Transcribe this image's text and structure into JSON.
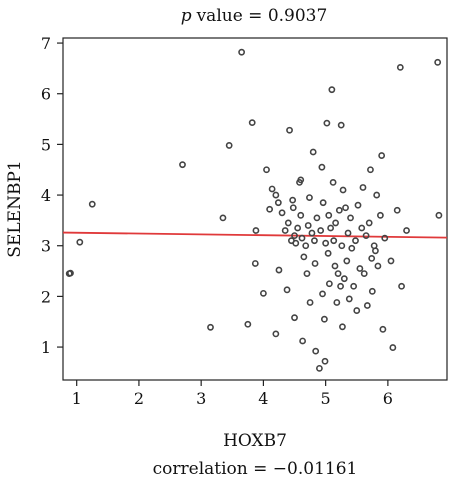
{
  "chart_data": {
    "type": "scatter",
    "title_label": "p",
    "title_value": "value = 0.9037",
    "xlabel": "HOXB7",
    "ylabel": "SELENBP1",
    "caption": "correlation = −0.01161",
    "xlim": [
      0.78,
      6.95
    ],
    "ylim": [
      0.35,
      7.1
    ],
    "xticks": [
      1,
      2,
      3,
      4,
      5,
      6
    ],
    "yticks": [
      1,
      2,
      3,
      4,
      5,
      6,
      7
    ],
    "grid": false,
    "marker_color": "#444444",
    "fit_color": "#e0393a",
    "fit_line": {
      "x": [
        0.78,
        6.95
      ],
      "y": [
        3.26,
        3.16
      ]
    },
    "points": [
      {
        "x": 0.88,
        "y": 2.45
      },
      {
        "x": 0.9,
        "y": 2.46
      },
      {
        "x": 1.05,
        "y": 3.07
      },
      {
        "x": 1.25,
        "y": 3.82
      },
      {
        "x": 2.7,
        "y": 4.6
      },
      {
        "x": 3.15,
        "y": 1.39
      },
      {
        "x": 3.35,
        "y": 3.55
      },
      {
        "x": 3.45,
        "y": 4.98
      },
      {
        "x": 3.65,
        "y": 6.82
      },
      {
        "x": 3.75,
        "y": 1.45
      },
      {
        "x": 3.82,
        "y": 5.43
      },
      {
        "x": 3.87,
        "y": 2.65
      },
      {
        "x": 3.88,
        "y": 3.3
      },
      {
        "x": 4.0,
        "y": 2.06
      },
      {
        "x": 4.05,
        "y": 4.5
      },
      {
        "x": 4.1,
        "y": 3.72
      },
      {
        "x": 4.14,
        "y": 4.12
      },
      {
        "x": 4.2,
        "y": 4.0
      },
      {
        "x": 4.2,
        "y": 1.26
      },
      {
        "x": 4.24,
        "y": 3.85
      },
      {
        "x": 4.25,
        "y": 2.52
      },
      {
        "x": 4.3,
        "y": 3.65
      },
      {
        "x": 4.35,
        "y": 3.3
      },
      {
        "x": 4.38,
        "y": 2.13
      },
      {
        "x": 4.4,
        "y": 3.45
      },
      {
        "x": 4.42,
        "y": 5.28
      },
      {
        "x": 4.45,
        "y": 3.1
      },
      {
        "x": 4.47,
        "y": 3.9
      },
      {
        "x": 4.48,
        "y": 3.75
      },
      {
        "x": 4.5,
        "y": 3.2
      },
      {
        "x": 4.5,
        "y": 1.58
      },
      {
        "x": 4.52,
        "y": 3.05
      },
      {
        "x": 4.55,
        "y": 3.35
      },
      {
        "x": 4.58,
        "y": 4.25
      },
      {
        "x": 4.6,
        "y": 4.3
      },
      {
        "x": 4.6,
        "y": 3.6
      },
      {
        "x": 4.62,
        "y": 3.15
      },
      {
        "x": 4.63,
        "y": 1.12
      },
      {
        "x": 4.65,
        "y": 2.78
      },
      {
        "x": 4.68,
        "y": 3.0
      },
      {
        "x": 4.7,
        "y": 2.45
      },
      {
        "x": 4.72,
        "y": 3.4
      },
      {
        "x": 4.74,
        "y": 3.95
      },
      {
        "x": 4.75,
        "y": 1.88
      },
      {
        "x": 4.78,
        "y": 3.25
      },
      {
        "x": 4.8,
        "y": 4.85
      },
      {
        "x": 4.82,
        "y": 3.1
      },
      {
        "x": 4.83,
        "y": 2.65
      },
      {
        "x": 4.84,
        "y": 0.92
      },
      {
        "x": 4.86,
        "y": 3.55
      },
      {
        "x": 4.9,
        "y": 0.58
      },
      {
        "x": 4.92,
        "y": 3.3
      },
      {
        "x": 4.94,
        "y": 4.55
      },
      {
        "x": 4.95,
        "y": 2.05
      },
      {
        "x": 4.96,
        "y": 3.85
      },
      {
        "x": 4.98,
        "y": 1.55
      },
      {
        "x": 4.99,
        "y": 0.72
      },
      {
        "x": 5.0,
        "y": 3.05
      },
      {
        "x": 5.02,
        "y": 5.42
      },
      {
        "x": 5.04,
        "y": 2.85
      },
      {
        "x": 5.05,
        "y": 3.6
      },
      {
        "x": 5.06,
        "y": 2.25
      },
      {
        "x": 5.08,
        "y": 3.35
      },
      {
        "x": 5.1,
        "y": 6.08
      },
      {
        "x": 5.12,
        "y": 4.25
      },
      {
        "x": 5.13,
        "y": 3.1
      },
      {
        "x": 5.15,
        "y": 2.6
      },
      {
        "x": 5.16,
        "y": 3.45
      },
      {
        "x": 5.18,
        "y": 1.88
      },
      {
        "x": 5.2,
        "y": 2.45
      },
      {
        "x": 5.22,
        "y": 3.7
      },
      {
        "x": 5.24,
        "y": 2.2
      },
      {
        "x": 5.25,
        "y": 5.38
      },
      {
        "x": 5.26,
        "y": 3.0
      },
      {
        "x": 5.27,
        "y": 1.4
      },
      {
        "x": 5.28,
        "y": 4.1
      },
      {
        "x": 5.3,
        "y": 2.35
      },
      {
        "x": 5.32,
        "y": 3.75
      },
      {
        "x": 5.34,
        "y": 2.7
      },
      {
        "x": 5.36,
        "y": 3.25
      },
      {
        "x": 5.38,
        "y": 1.95
      },
      {
        "x": 5.4,
        "y": 3.55
      },
      {
        "x": 5.42,
        "y": 2.95
      },
      {
        "x": 5.45,
        "y": 2.2
      },
      {
        "x": 5.48,
        "y": 3.1
      },
      {
        "x": 5.5,
        "y": 1.72
      },
      {
        "x": 5.52,
        "y": 3.8
      },
      {
        "x": 5.55,
        "y": 2.55
      },
      {
        "x": 5.58,
        "y": 3.35
      },
      {
        "x": 5.6,
        "y": 4.15
      },
      {
        "x": 5.62,
        "y": 2.45
      },
      {
        "x": 5.65,
        "y": 3.2
      },
      {
        "x": 5.67,
        "y": 1.82
      },
      {
        "x": 5.7,
        "y": 3.45
      },
      {
        "x": 5.72,
        "y": 4.5
      },
      {
        "x": 5.74,
        "y": 2.75
      },
      {
        "x": 5.75,
        "y": 2.1
      },
      {
        "x": 5.78,
        "y": 3.0
      },
      {
        "x": 5.8,
        "y": 2.9
      },
      {
        "x": 5.82,
        "y": 4.0
      },
      {
        "x": 5.84,
        "y": 2.6
      },
      {
        "x": 5.88,
        "y": 3.6
      },
      {
        "x": 5.9,
        "y": 4.78
      },
      {
        "x": 5.92,
        "y": 1.35
      },
      {
        "x": 5.95,
        "y": 3.15
      },
      {
        "x": 6.05,
        "y": 2.7
      },
      {
        "x": 6.08,
        "y": 0.99
      },
      {
        "x": 6.15,
        "y": 3.7
      },
      {
        "x": 6.2,
        "y": 6.52
      },
      {
        "x": 6.22,
        "y": 2.2
      },
      {
        "x": 6.3,
        "y": 3.3
      },
      {
        "x": 6.8,
        "y": 6.62
      },
      {
        "x": 6.82,
        "y": 3.6
      }
    ]
  }
}
